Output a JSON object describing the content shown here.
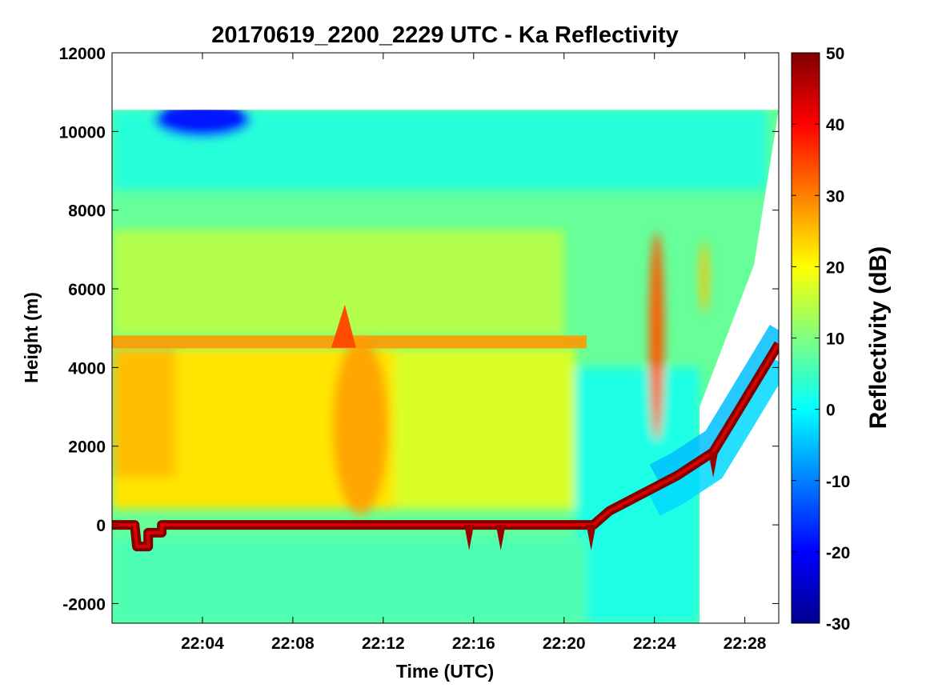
{
  "chart_data": {
    "type": "heatmap",
    "title": "20170619_2200_2229 UTC - Ka Reflectivity",
    "xlabel": "Time (UTC)",
    "ylabel": "Height (m)",
    "x_range_minutes": [
      0,
      29.5
    ],
    "x_ticks": [
      {
        "minute": 4,
        "label": "22:04"
      },
      {
        "minute": 8,
        "label": "22:08"
      },
      {
        "minute": 12,
        "label": "22:12"
      },
      {
        "minute": 16,
        "label": "22:16"
      },
      {
        "minute": 20,
        "label": "22:20"
      },
      {
        "minute": 24,
        "label": "22:24"
      },
      {
        "minute": 28,
        "label": "22:28"
      }
    ],
    "ylim": [
      -2500,
      12000
    ],
    "y_ticks": [
      -2000,
      0,
      2000,
      4000,
      6000,
      8000,
      10000,
      12000
    ],
    "y_tick_labels": [
      "-2000",
      "0",
      "2000",
      "4000",
      "6000",
      "8000",
      "10000",
      "12000"
    ],
    "colorbar": {
      "label": "Reflectivity (dB)",
      "range": [
        -30,
        50
      ],
      "ticks": [
        -30,
        -20,
        -10,
        0,
        10,
        20,
        30,
        40,
        50
      ],
      "tick_labels": [
        "-30",
        "-20",
        "-10",
        "0",
        "10",
        "20",
        "30",
        "40",
        "50"
      ],
      "colormap": "jet"
    },
    "data_top_height_m": 10550,
    "surface_echo": [
      {
        "minute": 0,
        "height": 0
      },
      {
        "minute": 1,
        "height": 0
      },
      {
        "minute": 1.1,
        "height": -550
      },
      {
        "minute": 1.6,
        "height": -550
      },
      {
        "minute": 1.6,
        "height": -200
      },
      {
        "minute": 2.2,
        "height": -200
      },
      {
        "minute": 2.2,
        "height": 0
      },
      {
        "minute": 21.3,
        "height": 0
      },
      {
        "minute": 22,
        "height": 350
      },
      {
        "minute": 24,
        "height": 950
      },
      {
        "minute": 25,
        "height": 1250
      },
      {
        "minute": 26.6,
        "height": 1850
      },
      {
        "minute": 27.5,
        "height": 2700
      },
      {
        "minute": 29.5,
        "height": 4600
      }
    ],
    "bright_band": {
      "height": 4650,
      "start_minute": 0,
      "end_minute": 21,
      "value_db": 28
    },
    "clear_air_regions": [
      {
        "minute_start": 26.0,
        "minute_end": 29.5,
        "upper_edge": [
          [
            26.0,
            3000
          ],
          [
            27.2,
            4800
          ],
          [
            28.4,
            6600
          ],
          [
            29.5,
            10550
          ]
        ],
        "lower_edge": [
          [
            26.0,
            -2500
          ],
          [
            29.5,
            -2500
          ]
        ]
      }
    ]
  }
}
